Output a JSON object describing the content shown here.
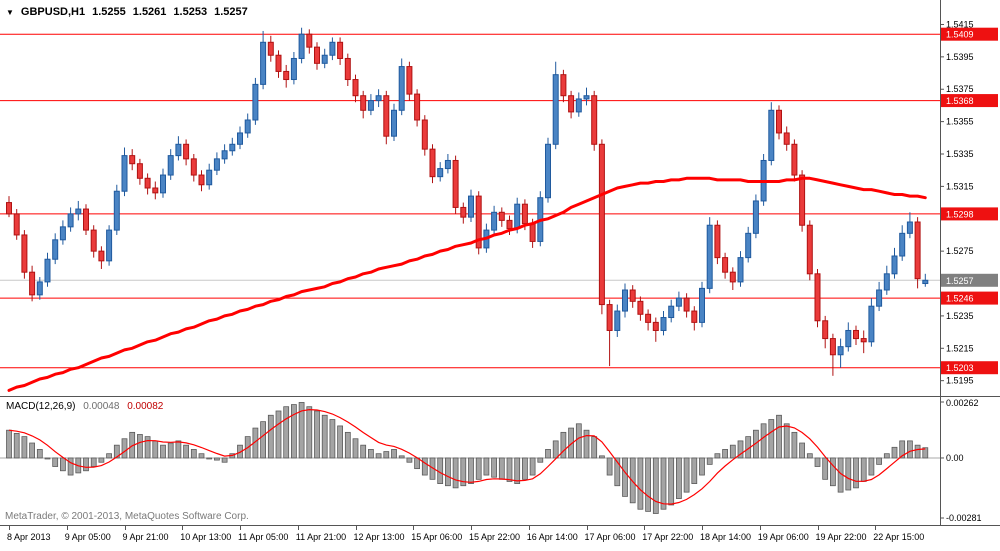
{
  "header": {
    "dropdown_icon": "▼",
    "symbol": "GBPUSD,H1",
    "open": "1.5255",
    "high": "1.5261",
    "low": "1.5253",
    "close": "1.5257"
  },
  "watermark": "MetaTrader, © 2001-2013, MetaQuotes Software Corp.",
  "colors": {
    "bull_fill": "#4a84c4",
    "bull_stroke": "#205a9e",
    "bear_fill": "#ea3b3b",
    "bear_stroke": "#b01212",
    "level_line": "#ff0000",
    "ma_line": "#ff0000",
    "price_tag": "#ee1111",
    "current_tag": "#808080",
    "hist_fill": "#a4a4a4",
    "hist_stroke": "#555555",
    "signal": "#ff0000",
    "border": "#555555",
    "current_price_line": "#c8c8c8"
  },
  "chart_data": [
    {
      "type": "candlestick",
      "title": "GBPUSD,H1",
      "x_labels": [
        "8 Apr 2013",
        "9 Apr 05:00",
        "9 Apr 21:00",
        "10 Apr 13:00",
        "11 Apr 05:00",
        "11 Apr 21:00",
        "12 Apr 13:00",
        "15 Apr 06:00",
        "15 Apr 22:00",
        "16 Apr 14:00",
        "17 Apr 06:00",
        "17 Apr 22:00",
        "18 Apr 14:00",
        "19 Apr 06:00",
        "19 Apr 22:00",
        "22 Apr 15:00"
      ],
      "y_axis": {
        "min": 1.5188,
        "max": 1.5419,
        "ticks": [
          1.5415,
          1.5395,
          1.5375,
          1.5355,
          1.5335,
          1.5315,
          1.5275,
          1.5235,
          1.5215,
          1.5195
        ]
      },
      "horizontal_lines": [
        1.5409,
        1.5368,
        1.5298,
        1.5246,
        1.5203
      ],
      "current_price": 1.5257,
      "candles": [
        [
          1.5305,
          1.5309,
          1.5296,
          1.5298
        ],
        [
          1.5298,
          1.5301,
          1.5282,
          1.5285
        ],
        [
          1.5285,
          1.5288,
          1.5258,
          1.5262
        ],
        [
          1.5262,
          1.5266,
          1.5244,
          1.5248
        ],
        [
          1.5248,
          1.5259,
          1.5245,
          1.5256
        ],
        [
          1.5256,
          1.5274,
          1.5253,
          1.527
        ],
        [
          1.527,
          1.5286,
          1.5267,
          1.5282
        ],
        [
          1.5282,
          1.5294,
          1.5279,
          1.529
        ],
        [
          1.529,
          1.5302,
          1.5287,
          1.5298
        ],
        [
          1.5298,
          1.5306,
          1.5294,
          1.5301
        ],
        [
          1.5301,
          1.5304,
          1.5285,
          1.5288
        ],
        [
          1.5288,
          1.5291,
          1.5271,
          1.5275
        ],
        [
          1.5275,
          1.5278,
          1.5264,
          1.5269
        ],
        [
          1.5269,
          1.5291,
          1.5266,
          1.5288
        ],
        [
          1.5288,
          1.5316,
          1.5285,
          1.5312
        ],
        [
          1.5312,
          1.5339,
          1.5309,
          1.5334
        ],
        [
          1.5334,
          1.5338,
          1.5325,
          1.5329
        ],
        [
          1.5329,
          1.5332,
          1.5316,
          1.532
        ],
        [
          1.532,
          1.5323,
          1.531,
          1.5314
        ],
        [
          1.5314,
          1.5318,
          1.5307,
          1.5311
        ],
        [
          1.5311,
          1.5326,
          1.5308,
          1.5322
        ],
        [
          1.5322,
          1.5338,
          1.5319,
          1.5334
        ],
        [
          1.5334,
          1.5346,
          1.5331,
          1.5341
        ],
        [
          1.5341,
          1.5344,
          1.5328,
          1.5332
        ],
        [
          1.5332,
          1.5335,
          1.5318,
          1.5322
        ],
        [
          1.5322,
          1.5325,
          1.5312,
          1.5316
        ],
        [
          1.5316,
          1.5329,
          1.5313,
          1.5325
        ],
        [
          1.5325,
          1.5336,
          1.5322,
          1.5332
        ],
        [
          1.5332,
          1.5341,
          1.5329,
          1.5337
        ],
        [
          1.5337,
          1.5345,
          1.5334,
          1.5341
        ],
        [
          1.5341,
          1.5352,
          1.5338,
          1.5348
        ],
        [
          1.5348,
          1.536,
          1.5345,
          1.5356
        ],
        [
          1.5356,
          1.5382,
          1.5353,
          1.5378
        ],
        [
          1.5378,
          1.5411,
          1.5375,
          1.5404
        ],
        [
          1.5404,
          1.5408,
          1.5392,
          1.5396
        ],
        [
          1.5396,
          1.5399,
          1.5382,
          1.5386
        ],
        [
          1.5386,
          1.539,
          1.5376,
          1.5381
        ],
        [
          1.5381,
          1.5398,
          1.5378,
          1.5394
        ],
        [
          1.5394,
          1.5413,
          1.5391,
          1.5409
        ],
        [
          1.5409,
          1.5412,
          1.5397,
          1.5401
        ],
        [
          1.5401,
          1.5404,
          1.5387,
          1.5391
        ],
        [
          1.5391,
          1.54,
          1.5388,
          1.5396
        ],
        [
          1.5396,
          1.5407,
          1.5393,
          1.5404
        ],
        [
          1.5404,
          1.5407,
          1.539,
          1.5394
        ],
        [
          1.5394,
          1.5397,
          1.5377,
          1.5381
        ],
        [
          1.5381,
          1.5384,
          1.5367,
          1.5371
        ],
        [
          1.5371,
          1.5374,
          1.5357,
          1.5362
        ],
        [
          1.5362,
          1.5372,
          1.5359,
          1.5368
        ],
        [
          1.5368,
          1.5375,
          1.5364,
          1.5371
        ],
        [
          1.5371,
          1.5374,
          1.5341,
          1.5346
        ],
        [
          1.5346,
          1.5366,
          1.5343,
          1.5362
        ],
        [
          1.5362,
          1.5394,
          1.5359,
          1.5389
        ],
        [
          1.5389,
          1.5392,
          1.5368,
          1.5372
        ],
        [
          1.5372,
          1.5375,
          1.5352,
          1.5356
        ],
        [
          1.5356,
          1.5359,
          1.5334,
          1.5338
        ],
        [
          1.5338,
          1.5341,
          1.5317,
          1.5321
        ],
        [
          1.5321,
          1.533,
          1.5318,
          1.5326
        ],
        [
          1.5326,
          1.5335,
          1.5323,
          1.5331
        ],
        [
          1.5331,
          1.5334,
          1.5298,
          1.5302
        ],
        [
          1.5302,
          1.5305,
          1.5292,
          1.5296
        ],
        [
          1.5296,
          1.5313,
          1.5293,
          1.5309
        ],
        [
          1.5309,
          1.5312,
          1.5273,
          1.5277
        ],
        [
          1.5277,
          1.5292,
          1.5274,
          1.5288
        ],
        [
          1.5288,
          1.5303,
          1.5285,
          1.5299
        ],
        [
          1.5299,
          1.5302,
          1.529,
          1.5294
        ],
        [
          1.5294,
          1.5297,
          1.5285,
          1.5289
        ],
        [
          1.5289,
          1.5308,
          1.5286,
          1.5304
        ],
        [
          1.5304,
          1.5307,
          1.5288,
          1.5292
        ],
        [
          1.5292,
          1.5295,
          1.5277,
          1.5281
        ],
        [
          1.5281,
          1.5312,
          1.5278,
          1.5308
        ],
        [
          1.5308,
          1.5345,
          1.5305,
          1.5341
        ],
        [
          1.5341,
          1.5392,
          1.5338,
          1.5384
        ],
        [
          1.5384,
          1.5387,
          1.5367,
          1.5371
        ],
        [
          1.5371,
          1.5374,
          1.5357,
          1.5361
        ],
        [
          1.5361,
          1.5373,
          1.5358,
          1.5369
        ],
        [
          1.5369,
          1.5376,
          1.5365,
          1.5371
        ],
        [
          1.5371,
          1.5374,
          1.5337,
          1.5341
        ],
        [
          1.5341,
          1.5344,
          1.5236,
          1.5242
        ],
        [
          1.5242,
          1.5245,
          1.5204,
          1.5226
        ],
        [
          1.5226,
          1.5242,
          1.5222,
          1.5238
        ],
        [
          1.5238,
          1.5255,
          1.5234,
          1.5251
        ],
        [
          1.5251,
          1.5254,
          1.524,
          1.5244
        ],
        [
          1.5244,
          1.5247,
          1.5232,
          1.5236
        ],
        [
          1.5236,
          1.5239,
          1.5226,
          1.5231
        ],
        [
          1.5231,
          1.5234,
          1.5219,
          1.5226
        ],
        [
          1.5226,
          1.5238,
          1.5223,
          1.5234
        ],
        [
          1.5234,
          1.5245,
          1.5231,
          1.5241
        ],
        [
          1.5241,
          1.525,
          1.5238,
          1.5246
        ],
        [
          1.5246,
          1.5249,
          1.5234,
          1.5238
        ],
        [
          1.5238,
          1.5241,
          1.5226,
          1.5231
        ],
        [
          1.5231,
          1.5256,
          1.5228,
          1.5252
        ],
        [
          1.5252,
          1.5296,
          1.5249,
          1.5291
        ],
        [
          1.5291,
          1.5294,
          1.5267,
          1.5271
        ],
        [
          1.5271,
          1.5274,
          1.5258,
          1.5262
        ],
        [
          1.5262,
          1.5265,
          1.5251,
          1.5256
        ],
        [
          1.5256,
          1.5275,
          1.5253,
          1.5271
        ],
        [
          1.5271,
          1.529,
          1.5268,
          1.5286
        ],
        [
          1.5286,
          1.531,
          1.5283,
          1.5306
        ],
        [
          1.5306,
          1.5335,
          1.5303,
          1.5331
        ],
        [
          1.5331,
          1.5367,
          1.5328,
          1.5362
        ],
        [
          1.5362,
          1.5365,
          1.5344,
          1.5348
        ],
        [
          1.5348,
          1.5352,
          1.5337,
          1.5341
        ],
        [
          1.5341,
          1.5344,
          1.5318,
          1.5322
        ],
        [
          1.5322,
          1.5325,
          1.5287,
          1.5291
        ],
        [
          1.5291,
          1.5294,
          1.5257,
          1.5261
        ],
        [
          1.5261,
          1.5264,
          1.5228,
          1.5232
        ],
        [
          1.5232,
          1.5235,
          1.5215,
          1.5221
        ],
        [
          1.5221,
          1.5224,
          1.5198,
          1.5211
        ],
        [
          1.5211,
          1.5221,
          1.5203,
          1.5216
        ],
        [
          1.5216,
          1.5231,
          1.5213,
          1.5226
        ],
        [
          1.5226,
          1.5229,
          1.5217,
          1.5221
        ],
        [
          1.5221,
          1.5226,
          1.5212,
          1.5219
        ],
        [
          1.5219,
          1.5246,
          1.5216,
          1.5241
        ],
        [
          1.5241,
          1.5256,
          1.5238,
          1.5251
        ],
        [
          1.5251,
          1.5266,
          1.5248,
          1.5261
        ],
        [
          1.5261,
          1.5277,
          1.5258,
          1.5272
        ],
        [
          1.5272,
          1.5291,
          1.5269,
          1.5286
        ],
        [
          1.5286,
          1.5299,
          1.5283,
          1.5293
        ],
        [
          1.5293,
          1.5296,
          1.5252,
          1.5258
        ],
        [
          1.5255,
          1.5261,
          1.5253,
          1.5257
        ]
      ],
      "moving_average": [
        1.5189,
        1.5191,
        1.5192,
        1.5194,
        1.5196,
        1.5197,
        1.5199,
        1.52,
        1.5202,
        1.5203,
        1.5205,
        1.5207,
        1.5209,
        1.521,
        1.5212,
        1.5214,
        1.5215,
        1.5217,
        1.5219,
        1.522,
        1.5222,
        1.5224,
        1.5225,
        1.5227,
        1.5228,
        1.523,
        1.5232,
        1.5233,
        1.5235,
        1.5236,
        1.5238,
        1.5239,
        1.5241,
        1.5242,
        1.5244,
        1.5245,
        1.5247,
        1.5248,
        1.525,
        1.5251,
        1.5252,
        1.5253,
        1.5255,
        1.5256,
        1.5258,
        1.5259,
        1.5261,
        1.5262,
        1.5264,
        1.5265,
        1.5266,
        1.5267,
        1.5269,
        1.527,
        1.5272,
        1.5273,
        1.5275,
        1.5276,
        1.5278,
        1.5279,
        1.528,
        1.5282,
        1.5283,
        1.5285,
        1.5286,
        1.5288,
        1.5289,
        1.5291,
        1.5292,
        1.5294,
        1.5295,
        1.5297,
        1.5299,
        1.5302,
        1.5304,
        1.5306,
        1.5308,
        1.531,
        1.5312,
        1.5314,
        1.5315,
        1.5316,
        1.5317,
        1.5317,
        1.5318,
        1.5318,
        1.5319,
        1.5319,
        1.532,
        1.532,
        1.532,
        1.532,
        1.5319,
        1.5319,
        1.5319,
        1.5319,
        1.5318,
        1.5318,
        1.5318,
        1.5318,
        1.5318,
        1.5319,
        1.5319,
        1.532,
        1.532,
        1.5319,
        1.5318,
        1.5317,
        1.5316,
        1.5315,
        1.5314,
        1.5313,
        1.5313,
        1.5312,
        1.5311,
        1.531,
        1.531,
        1.5309,
        1.5309,
        1.5308
      ]
    },
    {
      "type": "bar",
      "title": "MACD(12,26,9)",
      "values_label": {
        "main": "0.00048",
        "signal": "0.00082"
      },
      "y_axis": {
        "min": -0.00281,
        "max": 0.00262,
        "ticks": [
          "0.00262",
          "0.00",
          "-0.00281"
        ]
      },
      "signal_ema_alpha": 0.3,
      "histogram": [
        0.0013,
        0.00115,
        0.001,
        0.0007,
        0.0004,
        0.0,
        -0.0004,
        -0.0006,
        -0.0008,
        -0.0007,
        -0.0006,
        -0.0004,
        -0.0002,
        0.0002,
        0.0006,
        0.0009,
        0.0012,
        0.0011,
        0.001,
        0.0008,
        0.0006,
        0.0007,
        0.0008,
        0.0006,
        0.0004,
        0.0002,
        0.0,
        -0.0001,
        -0.0002,
        0.0002,
        0.0006,
        0.001,
        0.0014,
        0.0017,
        0.002,
        0.0022,
        0.0024,
        0.0025,
        0.0026,
        0.0024,
        0.0022,
        0.002,
        0.0018,
        0.0015,
        0.0012,
        0.0009,
        0.0006,
        0.0004,
        0.0002,
        0.0003,
        0.0004,
        0.0001,
        -0.0002,
        -0.0005,
        -0.0008,
        -0.001,
        -0.0012,
        -0.0013,
        -0.0014,
        -0.0013,
        -0.0012,
        -0.001,
        -0.0008,
        -0.0009,
        -0.001,
        -0.0011,
        -0.0012,
        -0.001,
        -0.0008,
        -0.0002,
        0.0004,
        0.0008,
        0.0012,
        0.0014,
        0.0016,
        0.0013,
        0.001,
        0.0001,
        -0.0008,
        -0.0013,
        -0.0018,
        -0.0021,
        -0.0024,
        -0.0025,
        -0.0026,
        -0.0024,
        -0.0022,
        -0.0019,
        -0.0016,
        -0.0012,
        -0.0008,
        -0.0003,
        0.0002,
        0.0004,
        0.0006,
        0.0008,
        0.001,
        0.0013,
        0.0016,
        0.0018,
        0.002,
        0.0016,
        0.0012,
        0.0007,
        0.0002,
        -0.0004,
        -0.001,
        -0.0013,
        -0.0016,
        -0.0015,
        -0.0014,
        -0.0011,
        -0.0008,
        -0.0003,
        0.0002,
        0.0005,
        0.0008,
        0.0008,
        0.0006,
        0.00048
      ]
    }
  ]
}
